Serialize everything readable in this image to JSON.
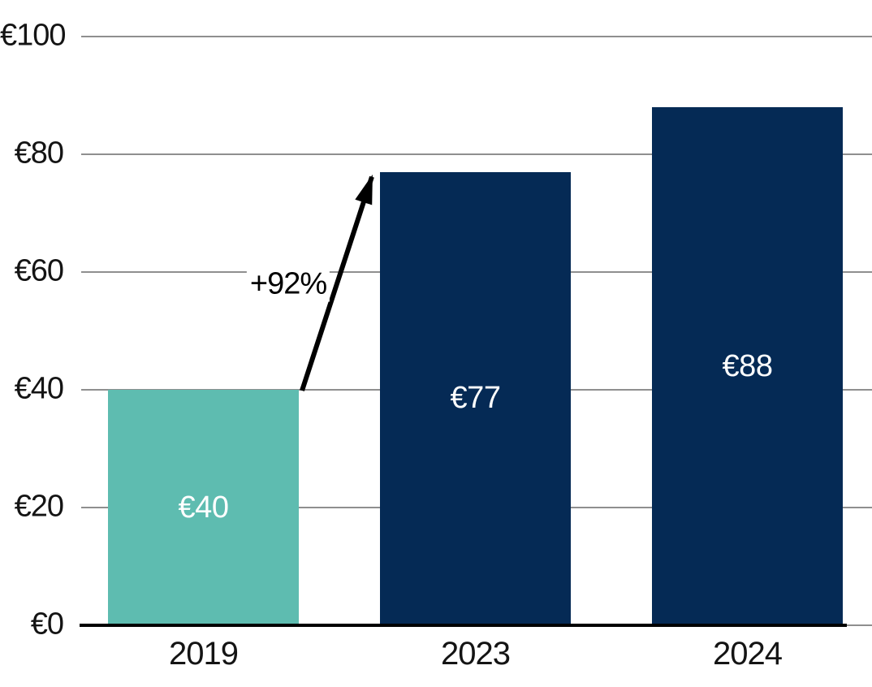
{
  "chart_data": {
    "type": "bar",
    "categories": [
      "2019",
      "2023",
      "2024"
    ],
    "values": [
      40,
      77,
      88
    ],
    "bar_labels": [
      "€40",
      "€77",
      "€88"
    ],
    "bar_colors": [
      "#5ebcb0",
      "#052a55",
      "#052a55"
    ],
    "title": "",
    "xlabel": "",
    "ylabel": "",
    "ylim": [
      0,
      100
    ],
    "yticks": [
      0,
      20,
      40,
      60,
      80,
      100
    ],
    "ytick_labels": [
      "€0",
      "€20",
      "€40",
      "€60",
      "€80",
      "€100"
    ],
    "grid": "horizontal",
    "legend": "none",
    "annotation": {
      "text": "+92%",
      "from": "2019",
      "to": "2023"
    }
  },
  "colors": {
    "teal_bar": "#5ebcb0",
    "navy_bar": "#052a55",
    "gridline": "#8f8f8f",
    "axis_line": "#000000",
    "tick_text": "#141414",
    "bar_value_text": "#ffffff",
    "annotation_text": "#000000"
  }
}
